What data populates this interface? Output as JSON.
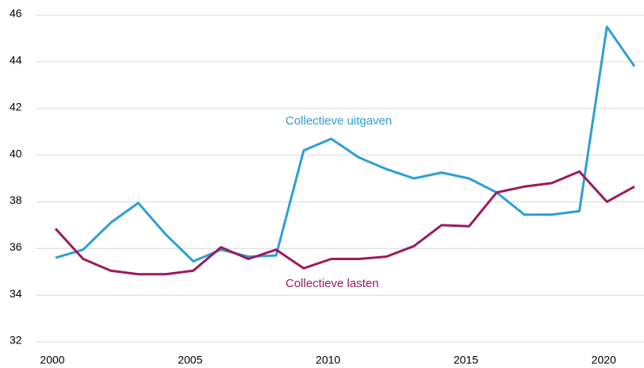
{
  "chart_data": {
    "type": "line",
    "x": [
      2000,
      2001,
      2002,
      2003,
      2004,
      2005,
      2006,
      2007,
      2008,
      2009,
      2010,
      2011,
      2012,
      2013,
      2014,
      2015,
      2016,
      2017,
      2018,
      2019,
      2020,
      2021
    ],
    "series": [
      {
        "name": "Collectieve uitgaven",
        "color": "#2e9fd4",
        "values": [
          35.6,
          35.95,
          37.1,
          37.95,
          36.6,
          35.45,
          35.95,
          35.65,
          35.7,
          40.2,
          40.7,
          39.9,
          39.4,
          39.0,
          39.25,
          39.0,
          38.4,
          37.45,
          37.45,
          37.6,
          45.5,
          43.8
        ]
      },
      {
        "name": "Collectieve lasten",
        "color": "#9b1b5e",
        "values": [
          36.85,
          35.55,
          35.05,
          34.9,
          34.9,
          35.05,
          36.05,
          35.55,
          35.95,
          35.15,
          35.55,
          35.55,
          35.65,
          36.1,
          37.0,
          36.95,
          38.4,
          38.65,
          38.8,
          39.3,
          38.0,
          38.65
        ]
      }
    ],
    "xlim": [
      2000,
      2021
    ],
    "xticks": [
      2000,
      2005,
      2010,
      2015,
      2020
    ],
    "ylim": [
      32,
      46
    ],
    "yticks": [
      32,
      34,
      36,
      38,
      40,
      42,
      44,
      46
    ],
    "grid": true
  }
}
